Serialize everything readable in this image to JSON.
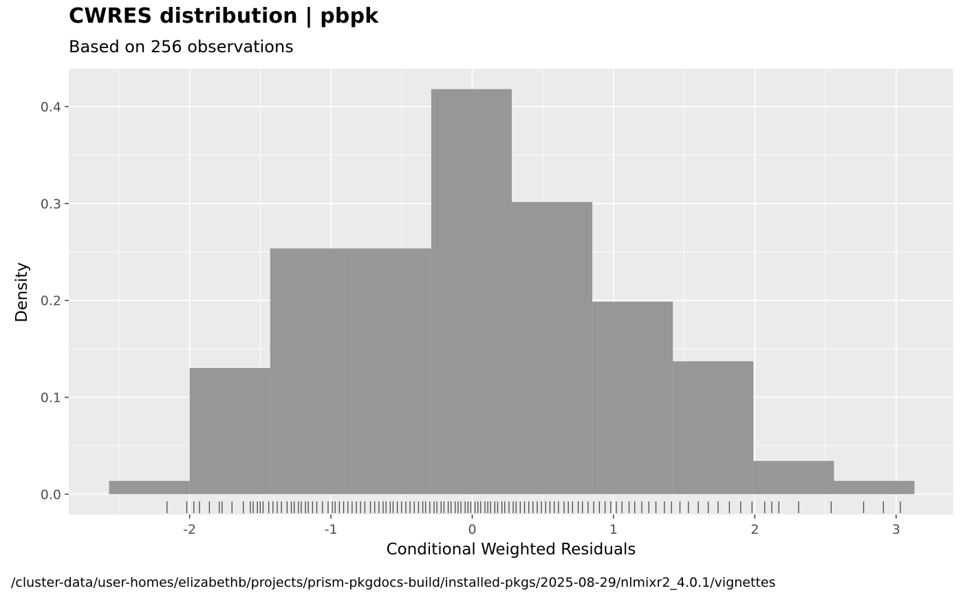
{
  "header": {
    "title": "CWRES distribution | pbpk",
    "subtitle": "Based on 256 observations"
  },
  "caption": "/cluster-data/user-homes/elizabethb/projects/prism-pkgdocs-build/installed-pkgs/2025-08-29/nlmixr2_4.0.1/vignettes",
  "chart_data": {
    "type": "bar",
    "subtype": "histogram_with_rug",
    "title": "CWRES distribution | pbpk",
    "subtitle": "Based on 256 observations",
    "xlabel": "Conditional Weighted Residuals",
    "ylabel": "Density",
    "legend": "none",
    "grid": true,
    "xlim": [
      -2.855,
      3.405
    ],
    "ylim": [
      -0.021,
      0.439
    ],
    "x_ticks": [
      -2,
      -1,
      0,
      1,
      2,
      3
    ],
    "x_tick_labels": [
      "-2",
      "-1",
      "0",
      "1",
      "2",
      "3"
    ],
    "x_minor_ticks": [
      -2.5,
      -1.5,
      -0.5,
      0.5,
      1.5,
      2.5
    ],
    "y_ticks": [
      0,
      0.1,
      0.2,
      0.3,
      0.4
    ],
    "y_tick_labels": [
      "0.0",
      "0.1",
      "0.2",
      "0.3",
      "0.4"
    ],
    "y_minor_ticks": [
      0.05,
      0.15,
      0.25,
      0.35
    ],
    "bin_width": 0.57,
    "n_observations": 256,
    "bins": [
      {
        "x_min": -2.57,
        "x_max": -2.0,
        "density": 0.0137
      },
      {
        "x_min": -2.0,
        "x_max": -1.43,
        "density": 0.1302
      },
      {
        "x_min": -1.43,
        "x_max": -0.86,
        "density": 0.2536
      },
      {
        "x_min": -0.86,
        "x_max": -0.29,
        "density": 0.2536
      },
      {
        "x_min": -0.29,
        "x_max": 0.28,
        "density": 0.418
      },
      {
        "x_min": 0.28,
        "x_max": 0.85,
        "density": 0.3015
      },
      {
        "x_min": 0.85,
        "x_max": 1.42,
        "density": 0.1987
      },
      {
        "x_min": 1.42,
        "x_max": 1.99,
        "density": 0.1371
      },
      {
        "x_min": 1.99,
        "x_max": 2.56,
        "density": 0.0343
      },
      {
        "x_min": 2.56,
        "x_max": 3.13,
        "density": 0.0137
      }
    ],
    "rug_x": [
      -2.16,
      -2.02,
      -1.97,
      -1.93,
      -1.86,
      -1.79,
      -1.77,
      -1.7,
      -1.62,
      -1.57,
      -1.55,
      -1.52,
      -1.5,
      -1.48,
      -1.44,
      -1.41,
      -1.38,
      -1.35,
      -1.31,
      -1.28,
      -1.26,
      -1.23,
      -1.21,
      -1.18,
      -1.16,
      -1.13,
      -1.1,
      -1.06,
      -1.02,
      -0.99,
      -0.97,
      -0.94,
      -0.91,
      -0.88,
      -0.85,
      -0.82,
      -0.79,
      -0.76,
      -0.72,
      -0.69,
      -0.66,
      -0.63,
      -0.61,
      -0.58,
      -0.56,
      -0.53,
      -0.5,
      -0.47,
      -0.44,
      -0.41,
      -0.38,
      -0.35,
      -0.33,
      -0.3,
      -0.27,
      -0.25,
      -0.22,
      -0.2,
      -0.17,
      -0.15,
      -0.12,
      -0.1,
      -0.08,
      -0.05,
      -0.03,
      -0.01,
      0.02,
      0.04,
      0.06,
      0.09,
      0.11,
      0.13,
      0.16,
      0.18,
      0.21,
      0.23,
      0.26,
      0.29,
      0.31,
      0.34,
      0.37,
      0.4,
      0.43,
      0.46,
      0.49,
      0.52,
      0.55,
      0.58,
      0.61,
      0.65,
      0.68,
      0.71,
      0.75,
      0.78,
      0.82,
      0.86,
      0.9,
      0.94,
      0.98,
      1.02,
      1.06,
      1.11,
      1.15,
      1.2,
      1.25,
      1.3,
      1.36,
      1.41,
      1.47,
      1.53,
      1.6,
      1.67,
      1.74,
      1.82,
      1.9,
      1.98,
      2.07,
      2.12,
      2.17,
      2.31,
      2.54,
      2.77,
      2.91,
      3.03
    ],
    "colors": {
      "bar_fill": "#979797",
      "panel_background": "#EBEBEB",
      "grid_major": "#FFFFFF",
      "grid_minor": "#FFFFFF",
      "tick_label": "#4D4D4D",
      "tick_mark": "#333333",
      "rug": "#454545",
      "text": "#000000"
    }
  }
}
